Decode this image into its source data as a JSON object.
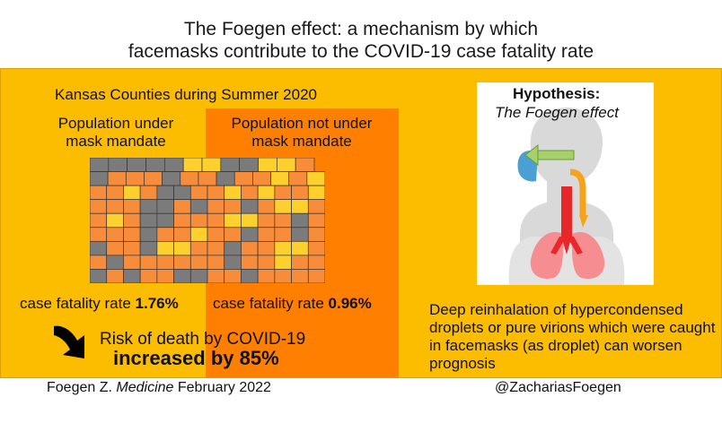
{
  "title": {
    "line1": "The Foegen effect: a mechanism by which",
    "line2": "facemasks contribute to the COVID-19 case fatality rate"
  },
  "left_panel": {
    "subtitle": "Kansas Counties during Summer 2020",
    "population_under": "Population under mask mandate",
    "population_not_under": "Population not under mask mandate",
    "cfr_mandate_label": "case fatality rate",
    "cfr_mandate_value": "1.76%",
    "cfr_no_mandate_label": "case fatality rate",
    "cfr_no_mandate_value": "0.96%",
    "risk_line": "Risk of death by COVID-19",
    "increase_line": "increased by 85%"
  },
  "hypothesis": {
    "title": "Hypothesis:",
    "subtitle": "The Foegen effect"
  },
  "description": "Deep reinhalation of hypercondensed droplets or pure virions which were caught in facemasks (as droplet) can worsen prognosis",
  "footer": {
    "citation_prefix": "Foegen Z.",
    "citation_journal": "Medicine",
    "citation_date": "February 2022",
    "handle": "@ZachariasFoegen"
  },
  "colors": {
    "panel": "#fcbc00",
    "orange_box": "#ff8001",
    "county_mandate": "#fed02e",
    "county_no_mandate": "#f78c3a",
    "county_no_data": "#7b7b7b",
    "mask": "#4a9fd5",
    "arrow_green": "#a6d06a",
    "lungs": "#f58d91",
    "airway_red": "#e8272b"
  },
  "icons": {
    "map": "kansas-county-map",
    "arrow": "curved-arrow-icon",
    "figure": "human-respiratory-illustration"
  },
  "map_grid": [
    "GGGGGYYGGYYO",
    "GOOOGOOGOOYOY",
    "OOYOGGOOYOYOOY",
    "OOOGGOGOOGOYYO",
    "OYOGGOOOYYOOGO",
    "OOOGOOYOOGOOGO",
    "GOOGYYOOGOOYYO",
    "OGOOOOOOGOOYOO",
    "GOGOOGGOOGOOOO"
  ]
}
